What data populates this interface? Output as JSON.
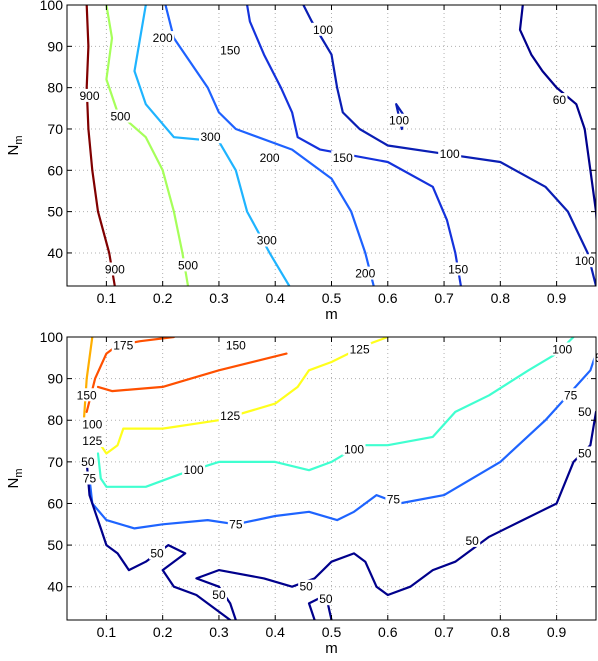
{
  "chart_data": [
    {
      "type": "contour",
      "xlabel": "m",
      "ylabel_main": "N",
      "ylabel_sub": "m",
      "xlim": [
        0.03,
        0.97
      ],
      "ylim": [
        32,
        100
      ],
      "xticks": [
        0.1,
        0.2,
        0.3,
        0.4,
        0.5,
        0.6,
        0.7,
        0.8,
        0.9
      ],
      "yticks": [
        40,
        50,
        60,
        70,
        80,
        90,
        100
      ],
      "grid": true,
      "contours": [
        {
          "level": "900",
          "color": "#800000",
          "segments": [
            [
              [
                0.115,
                32
              ],
              [
                0.105,
                40
              ],
              [
                0.085,
                50
              ],
              [
                0.075,
                60
              ],
              [
                0.068,
                70
              ],
              [
                0.065,
                80
              ],
              [
                0.068,
                90
              ],
              [
                0.065,
                100
              ]
            ]
          ]
        },
        {
          "level": "500",
          "color": "#a6ff5a",
          "segments": [
            [
              [
                0.245,
                32
              ],
              [
                0.235,
                40
              ],
              [
                0.22,
                50
              ],
              [
                0.2,
                60
              ],
              [
                0.17,
                68
              ],
              [
                0.12,
                74
              ],
              [
                0.1,
                82
              ],
              [
                0.11,
                92
              ],
              [
                0.1,
                100
              ]
            ]
          ]
        },
        {
          "level": "300",
          "color": "#1fb4ff",
          "segments": [
            [
              [
                0.425,
                32
              ],
              [
                0.39,
                40
              ],
              [
                0.35,
                50
              ],
              [
                0.33,
                60
              ],
              [
                0.3,
                67
              ],
              [
                0.22,
                68
              ],
              [
                0.17,
                76
              ],
              [
                0.15,
                84
              ],
              [
                0.17,
                100
              ]
            ]
          ]
        },
        {
          "level": "200",
          "color": "#1e62ff",
          "segments": [
            [
              [
                0.575,
                32
              ],
              [
                0.56,
                40
              ],
              [
                0.535,
                50
              ],
              [
                0.5,
                58
              ],
              [
                0.43,
                65
              ],
              [
                0.33,
                70
              ],
              [
                0.3,
                74
              ],
              [
                0.28,
                80
              ],
              [
                0.25,
                86
              ],
              [
                0.22,
                92
              ],
              [
                0.205,
                100
              ]
            ]
          ]
        },
        {
          "level": "150",
          "color": "#1432dc",
          "segments": [
            [
              [
                0.73,
                32
              ],
              [
                0.72,
                40
              ],
              [
                0.705,
                48
              ],
              [
                0.68,
                56
              ],
              [
                0.6,
                62
              ],
              [
                0.48,
                65
              ],
              [
                0.44,
                68
              ],
              [
                0.43,
                74
              ],
              [
                0.41,
                80
              ],
              [
                0.38,
                88
              ],
              [
                0.355,
                96
              ],
              [
                0.35,
                100
              ]
            ]
          ]
        },
        {
          "level": "100",
          "color": "#0a1eb4",
          "segments": [
            [
              [
                0.97,
                32
              ],
              [
                0.955,
                40
              ],
              [
                0.92,
                50
              ],
              [
                0.88,
                56
              ],
              [
                0.8,
                62
              ],
              [
                0.7,
                64
              ],
              [
                0.6,
                66
              ],
              [
                0.55,
                70
              ],
              [
                0.52,
                74
              ],
              [
                0.51,
                80
              ],
              [
                0.5,
                88
              ],
              [
                0.465,
                96
              ],
              [
                0.45,
                100
              ]
            ],
            [
              [
                0.625,
                70
              ],
              [
                0.63,
                73
              ],
              [
                0.615,
                76
              ],
              [
                0.625,
                70
              ]
            ]
          ]
        },
        {
          "level": "60",
          "color": "#00008c",
          "segments": [
            [
              [
                0.985,
                32
              ],
              [
                0.975,
                40
              ],
              [
                0.97,
                50
              ],
              [
                0.96,
                60
              ],
              [
                0.95,
                70
              ],
              [
                0.935,
                76
              ],
              [
                0.9,
                80
              ],
              [
                0.875,
                84
              ],
              [
                0.855,
                88
              ],
              [
                0.835,
                94
              ],
              [
                0.84,
                100
              ]
            ]
          ]
        }
      ],
      "labels": [
        {
          "text": "900",
          "x": 0.07,
          "y": 78
        },
        {
          "text": "900",
          "x": 0.115,
          "y": 36
        },
        {
          "text": "500",
          "x": 0.125,
          "y": 73
        },
        {
          "text": "500",
          "x": 0.245,
          "y": 37
        },
        {
          "text": "300",
          "x": 0.285,
          "y": 68
        },
        {
          "text": "300",
          "x": 0.385,
          "y": 43
        },
        {
          "text": "200",
          "x": 0.2,
          "y": 92
        },
        {
          "text": "200",
          "x": 0.39,
          "y": 63
        },
        {
          "text": "200",
          "x": 0.56,
          "y": 35
        },
        {
          "text": "150",
          "x": 0.32,
          "y": 89
        },
        {
          "text": "150",
          "x": 0.52,
          "y": 63
        },
        {
          "text": "150",
          "x": 0.725,
          "y": 36
        },
        {
          "text": "100",
          "x": 0.485,
          "y": 94
        },
        {
          "text": "100",
          "x": 0.62,
          "y": 72
        },
        {
          "text": "100",
          "x": 0.71,
          "y": 64
        },
        {
          "text": "100",
          "x": 0.95,
          "y": 38
        },
        {
          "text": "60",
          "x": 0.905,
          "y": 77
        },
        {
          "text": "60",
          "x": 0.985,
          "y": 37
        }
      ]
    },
    {
      "type": "contour",
      "xlabel": "m",
      "ylabel_main": "N",
      "ylabel_sub": "m",
      "xlim": [
        0.03,
        0.97
      ],
      "ylim": [
        32,
        100
      ],
      "xticks": [
        0.1,
        0.2,
        0.3,
        0.4,
        0.5,
        0.6,
        0.7,
        0.8,
        0.9
      ],
      "yticks": [
        40,
        50,
        60,
        70,
        80,
        90,
        100
      ],
      "grid": true,
      "contours": [
        {
          "level": "175",
          "color": "#ff5000",
          "segments": [
            [
              [
                0.065,
                82
              ],
              [
                0.08,
                90
              ],
              [
                0.1,
                96
              ],
              [
                0.12,
                98
              ],
              [
                0.16,
                99
              ],
              [
                0.22,
                100
              ]
            ],
            [
              [
                0.085,
                88
              ],
              [
                0.11,
                87
              ],
              [
                0.2,
                88
              ],
              [
                0.3,
                92
              ],
              [
                0.42,
                96
              ]
            ]
          ]
        },
        {
          "level": "150",
          "color": "#ffae00",
          "segments": [
            [
              [
                0.06,
                80
              ],
              [
                0.065,
                90
              ],
              [
                0.075,
                100
              ]
            ]
          ]
        },
        {
          "level": "125",
          "color": "#ffff1c",
          "segments": [
            [
              [
                0.08,
                76
              ],
              [
                0.1,
                72
              ],
              [
                0.12,
                74
              ],
              [
                0.13,
                78
              ],
              [
                0.2,
                78
              ],
              [
                0.3,
                80
              ],
              [
                0.4,
                84
              ],
              [
                0.44,
                88
              ],
              [
                0.46,
                92
              ],
              [
                0.5,
                94
              ],
              [
                0.56,
                98
              ],
              [
                0.6,
                100
              ]
            ]
          ]
        },
        {
          "level": "100",
          "color": "#40ffd0",
          "segments": [
            [
              [
                0.085,
                72
              ],
              [
                0.09,
                66
              ],
              [
                0.1,
                64
              ],
              [
                0.17,
                64
              ],
              [
                0.23,
                67
              ],
              [
                0.3,
                70
              ],
              [
                0.4,
                70
              ],
              [
                0.46,
                68
              ],
              [
                0.5,
                70
              ],
              [
                0.55,
                74
              ],
              [
                0.6,
                74
              ],
              [
                0.68,
                76
              ],
              [
                0.72,
                82
              ],
              [
                0.78,
                86
              ],
              [
                0.85,
                92
              ],
              [
                0.9,
                96
              ],
              [
                0.93,
                100
              ]
            ]
          ]
        },
        {
          "level": "75",
          "color": "#1e64ff",
          "segments": [
            [
              [
                0.07,
                66
              ],
              [
                0.075,
                60
              ],
              [
                0.1,
                56
              ],
              [
                0.15,
                54
              ],
              [
                0.2,
                55
              ],
              [
                0.28,
                56
              ],
              [
                0.33,
                55
              ],
              [
                0.4,
                57
              ],
              [
                0.46,
                58
              ],
              [
                0.51,
                56
              ],
              [
                0.54,
                58
              ],
              [
                0.58,
                62
              ],
              [
                0.62,
                60
              ],
              [
                0.7,
                62
              ],
              [
                0.8,
                70
              ],
              [
                0.88,
                80
              ],
              [
                0.92,
                86
              ],
              [
                0.96,
                92
              ],
              [
                0.97,
                96
              ]
            ]
          ]
        },
        {
          "level": "50",
          "color": "#00008c",
          "segments": [
            [
              [
                0.065,
                70
              ],
              [
                0.07,
                62
              ],
              [
                0.08,
                58
              ],
              [
                0.09,
                54
              ],
              [
                0.1,
                50
              ],
              [
                0.12,
                48
              ],
              [
                0.14,
                44
              ],
              [
                0.17,
                46
              ],
              [
                0.21,
                50
              ],
              [
                0.24,
                48
              ],
              [
                0.2,
                44
              ],
              [
                0.22,
                40
              ],
              [
                0.26,
                38
              ],
              [
                0.28,
                36
              ],
              [
                0.32,
                32
              ]
            ],
            [
              [
                0.33,
                32
              ],
              [
                0.32,
                36
              ],
              [
                0.3,
                40
              ],
              [
                0.26,
                42
              ],
              [
                0.3,
                44
              ],
              [
                0.38,
                42
              ],
              [
                0.43,
                40
              ],
              [
                0.47,
                42
              ],
              [
                0.5,
                46
              ],
              [
                0.54,
                48
              ],
              [
                0.56,
                46
              ],
              [
                0.58,
                40
              ],
              [
                0.6,
                38
              ],
              [
                0.64,
                40
              ],
              [
                0.68,
                44
              ],
              [
                0.72,
                46
              ],
              [
                0.78,
                52
              ],
              [
                0.84,
                56
              ],
              [
                0.87,
                58
              ],
              [
                0.9,
                60
              ],
              [
                0.93,
                70
              ],
              [
                0.96,
                74
              ],
              [
                0.97,
                82
              ]
            ],
            [
              [
                0.47,
                32
              ],
              [
                0.46,
                36
              ],
              [
                0.49,
                38
              ],
              [
                0.5,
                32
              ]
            ]
          ]
        }
      ],
      "labels": [
        {
          "text": "175",
          "x": 0.13,
          "y": 98
        },
        {
          "text": "150",
          "x": 0.33,
          "y": 98
        },
        {
          "text": "150",
          "x": 0.065,
          "y": 86
        },
        {
          "text": "125",
          "x": 0.55,
          "y": 97
        },
        {
          "text": "125",
          "x": 0.32,
          "y": 81
        },
        {
          "text": "125",
          "x": 0.075,
          "y": 75
        },
        {
          "text": "100",
          "x": 0.075,
          "y": 79
        },
        {
          "text": "100",
          "x": 0.91,
          "y": 97
        },
        {
          "text": "100",
          "x": 0.255,
          "y": 68
        },
        {
          "text": "100",
          "x": 0.54,
          "y": 73
        },
        {
          "text": "75",
          "x": 0.07,
          "y": 66
        },
        {
          "text": "75",
          "x": 0.33,
          "y": 55
        },
        {
          "text": "75",
          "x": 0.61,
          "y": 61
        },
        {
          "text": "75",
          "x": 0.925,
          "y": 86
        },
        {
          "text": "50",
          "x": 0.95,
          "y": 82
        },
        {
          "text": "50",
          "x": 0.95,
          "y": 72
        },
        {
          "text": "50",
          "x": 0.067,
          "y": 70
        },
        {
          "text": "50",
          "x": 0.19,
          "y": 48
        },
        {
          "text": "50",
          "x": 0.3,
          "y": 38
        },
        {
          "text": "50",
          "x": 0.455,
          "y": 40
        },
        {
          "text": "50",
          "x": 0.49,
          "y": 37
        },
        {
          "text": "50",
          "x": 0.75,
          "y": 51
        },
        {
          "text": "50",
          "x": 0.98,
          "y": 95
        }
      ]
    }
  ]
}
